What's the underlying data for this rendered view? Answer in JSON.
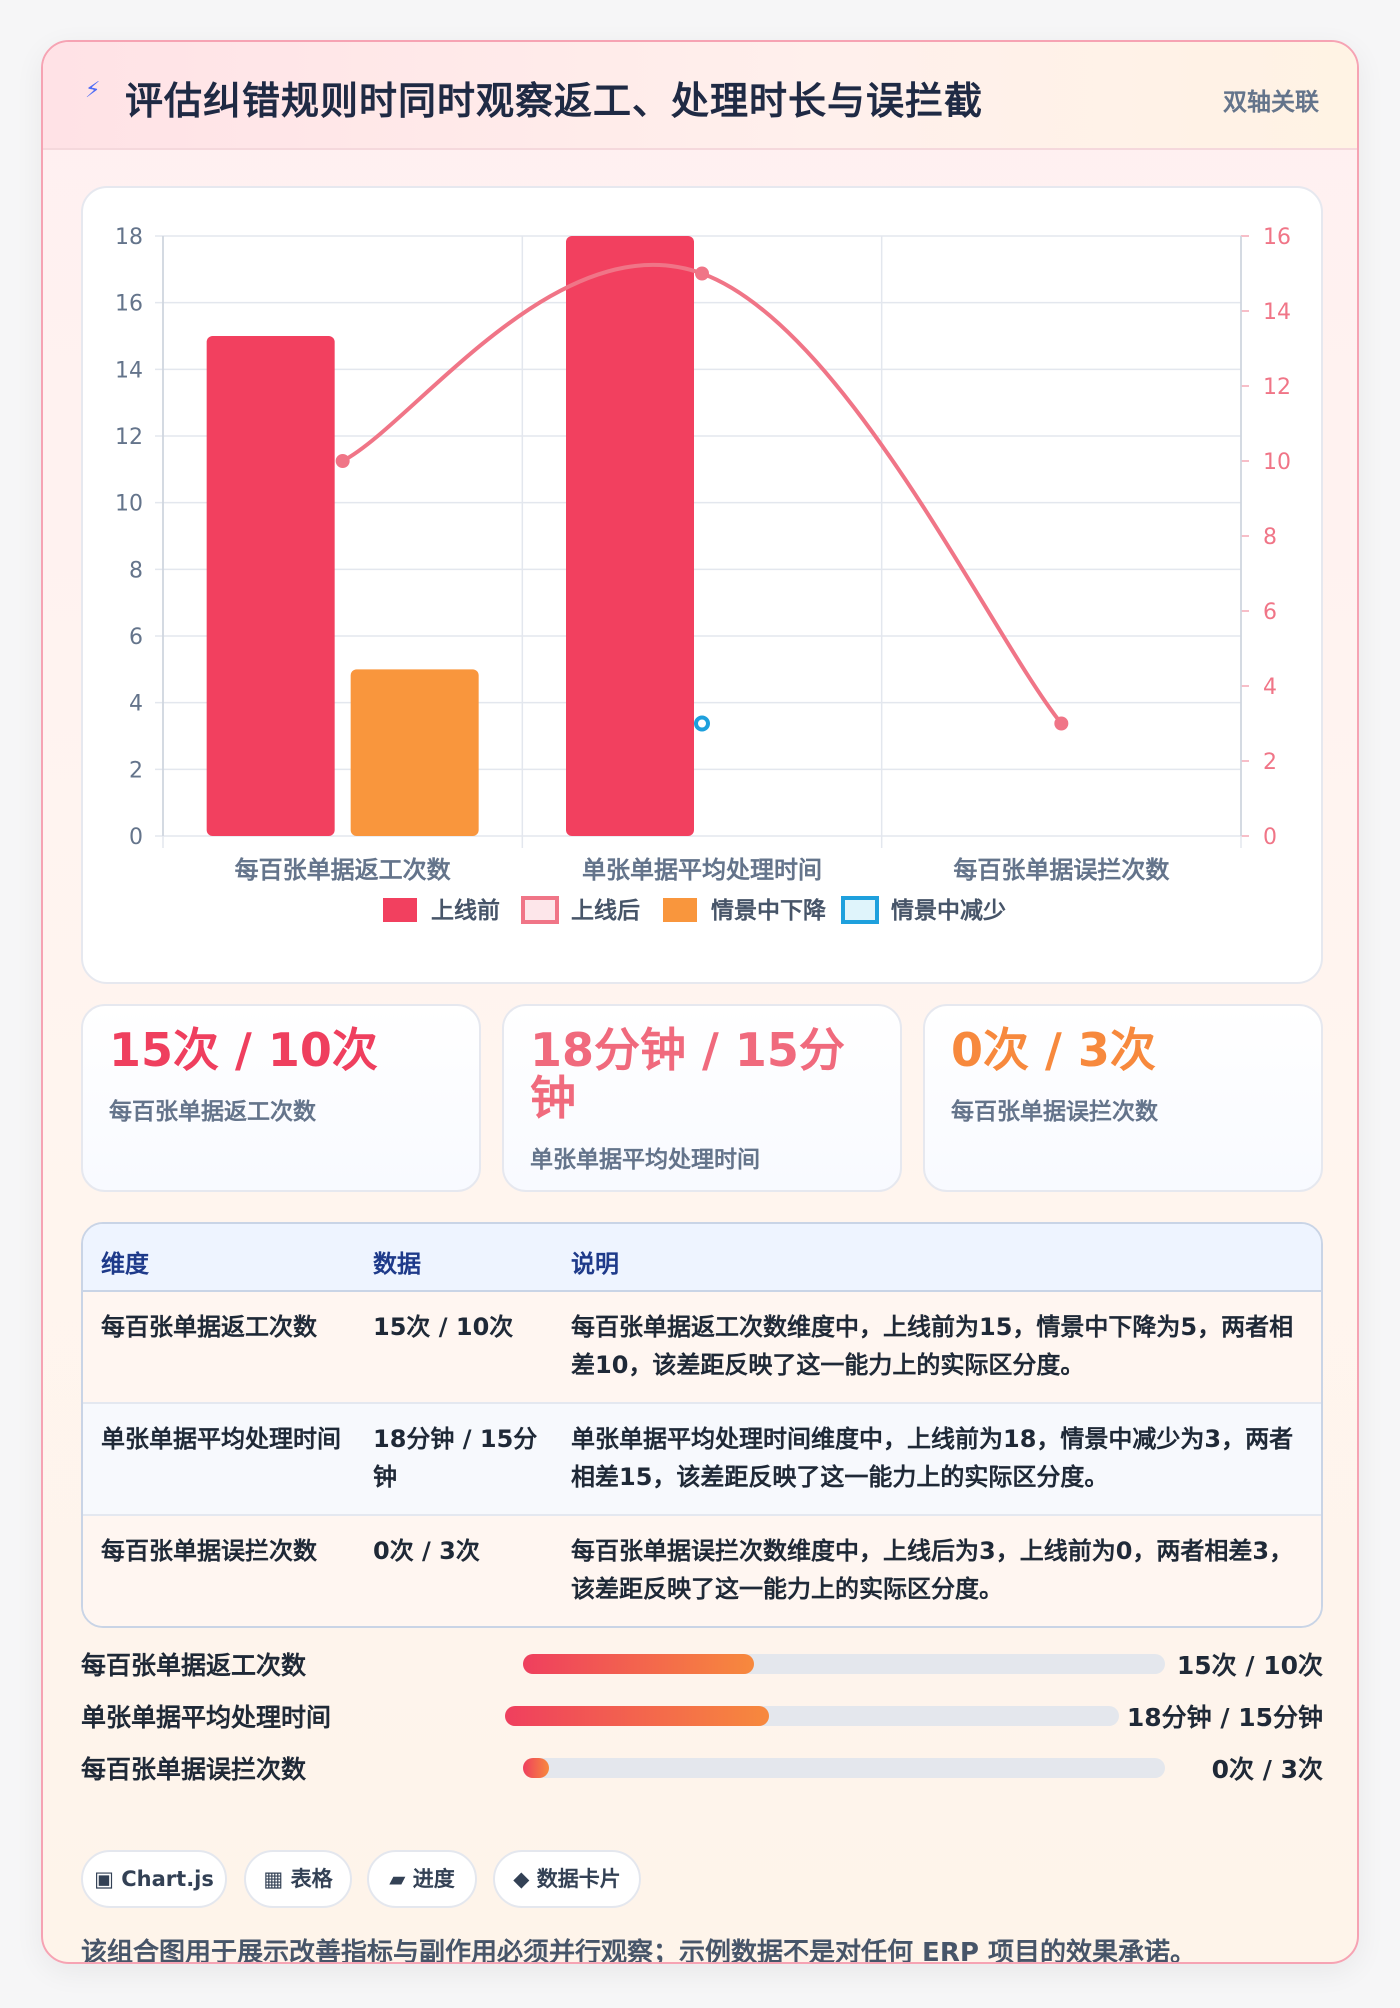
{
  "header": {
    "icon": "lightning-icon",
    "title": "评估纠错规则时同时观察返工、处理时长与误拦截",
    "tag": "双轴关联"
  },
  "chart_data": {
    "type": "bar+line",
    "categories": [
      "每百张单据返工次数",
      "单张单据平均处理时间",
      "每百张单据误拦次数"
    ],
    "left_axis": {
      "min": 0,
      "max": 18,
      "ticks": [
        "0",
        "2",
        "4",
        "6",
        "8",
        "10",
        "12",
        "14",
        "16",
        "18"
      ]
    },
    "right_axis": {
      "min": 0,
      "max": 16,
      "ticks": [
        "0",
        "2",
        "4",
        "6",
        "8",
        "10",
        "12",
        "14",
        "16"
      ]
    },
    "bars": [
      {
        "name": "上线前",
        "color": "#f2405f",
        "values": [
          15,
          18,
          null
        ]
      },
      {
        "name": "情景中下降",
        "color": "#f9963d",
        "values": [
          5,
          null,
          null
        ]
      }
    ],
    "lines": [
      {
        "name": "上线后",
        "color": "#f07587",
        "axis": "right",
        "values": [
          10,
          15,
          3
        ]
      },
      {
        "name": "情景中减少",
        "color": "#1ea0dd",
        "axis": "right",
        "values": [
          null,
          3,
          null
        ]
      }
    ],
    "legend": [
      {
        "name": "上线前",
        "style": "solid",
        "color": "#f2405f",
        "border": "#f2405f"
      },
      {
        "name": "上线后",
        "style": "outline",
        "color": "#fde6ea",
        "border": "#f07587"
      },
      {
        "name": "情景中下降",
        "style": "solid",
        "color": "#f9963d",
        "border": "#f9963d"
      },
      {
        "name": "情景中减少",
        "style": "outline",
        "color": "#dff4fb",
        "border": "#1ea0dd"
      }
    ],
    "legend_position": "bottom",
    "grid": true
  },
  "stats": [
    {
      "value": "15次 / 10次",
      "label": "每百张单据返工次数",
      "color": "#ef3f5e"
    },
    {
      "value": "18分钟 / 15分钟",
      "label": "单张单据平均处理时间",
      "color": "#f06a7d"
    },
    {
      "value": "0次 / 3次",
      "label": "每百张单据误拦次数",
      "color": "#f7893d"
    }
  ],
  "table": {
    "headers": [
      "维度",
      "数据",
      "说明"
    ],
    "rows": [
      [
        "每百张单据返工次数",
        "15次 / 10次",
        "每百张单据返工次数维度中，上线前为15，情景中下降为5，两者相差10，该差距反映了这一能力上的实际区分度。"
      ],
      [
        "单张单据平均处理时间",
        "18分钟 / 15分钟",
        "单张单据平均处理时间维度中，上线前为18，情景中减少为3，两者相差15，该差距反映了这一能力上的实际区分度。"
      ],
      [
        "每百张单据误拦次数",
        "0次 / 3次",
        "每百张单据误拦次数维度中，上线后为3，上线前为0，两者相差3，该差距反映了这一能力上的实际区分度。"
      ]
    ]
  },
  "progress": [
    {
      "label": "每百张单据返工次数",
      "value": "15次 / 10次",
      "fraction": 0.36
    },
    {
      "label": "单张单据平均处理时间",
      "value": "18分钟 / 15分钟",
      "fraction": 0.43
    },
    {
      "label": "每百张单据误拦次数",
      "value": "0次 / 3次",
      "fraction": 0.04
    }
  ],
  "pills": [
    {
      "icon": "chart-icon",
      "glyph": "▣",
      "label": "Chart.js"
    },
    {
      "icon": "table-icon",
      "glyph": "▦",
      "label": "表格"
    },
    {
      "icon": "progress-icon",
      "glyph": "▰",
      "label": "进度"
    },
    {
      "icon": "card-icon",
      "glyph": "◆",
      "label": "数据卡片"
    }
  ],
  "footer": "该组合图用于展示改善指标与副作用必须并行观察；示例数据不是对任何 ERP 项目的效果承诺。"
}
